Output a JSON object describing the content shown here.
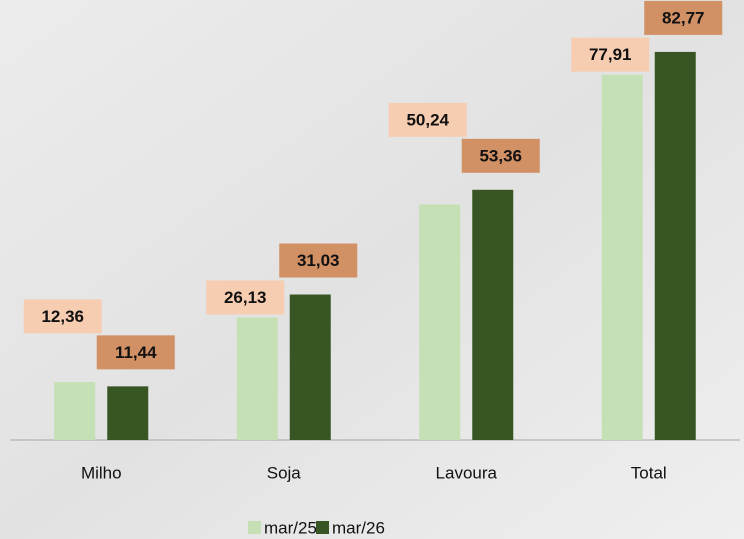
{
  "chart_data": {
    "type": "bar",
    "categories": [
      "Milho",
      "Soja",
      "Lavoura",
      "Total"
    ],
    "series": [
      {
        "name": "mar/25",
        "color": "#c5e0b4",
        "label_color": "#f8cbad",
        "values": [
          12.36,
          26.13,
          50.24,
          77.91
        ],
        "value_labels": [
          "12,36",
          "26,13",
          "50,24",
          "77,91"
        ]
      },
      {
        "name": "mar/26",
        "color": "#375623",
        "label_color": "#d0895a",
        "values": [
          11.44,
          31.03,
          53.36,
          82.77
        ],
        "value_labels": [
          "11,44",
          "31,03",
          "53,36",
          "82,77"
        ]
      }
    ],
    "ylim": [
      0,
      90
    ],
    "legend": "bottom"
  }
}
